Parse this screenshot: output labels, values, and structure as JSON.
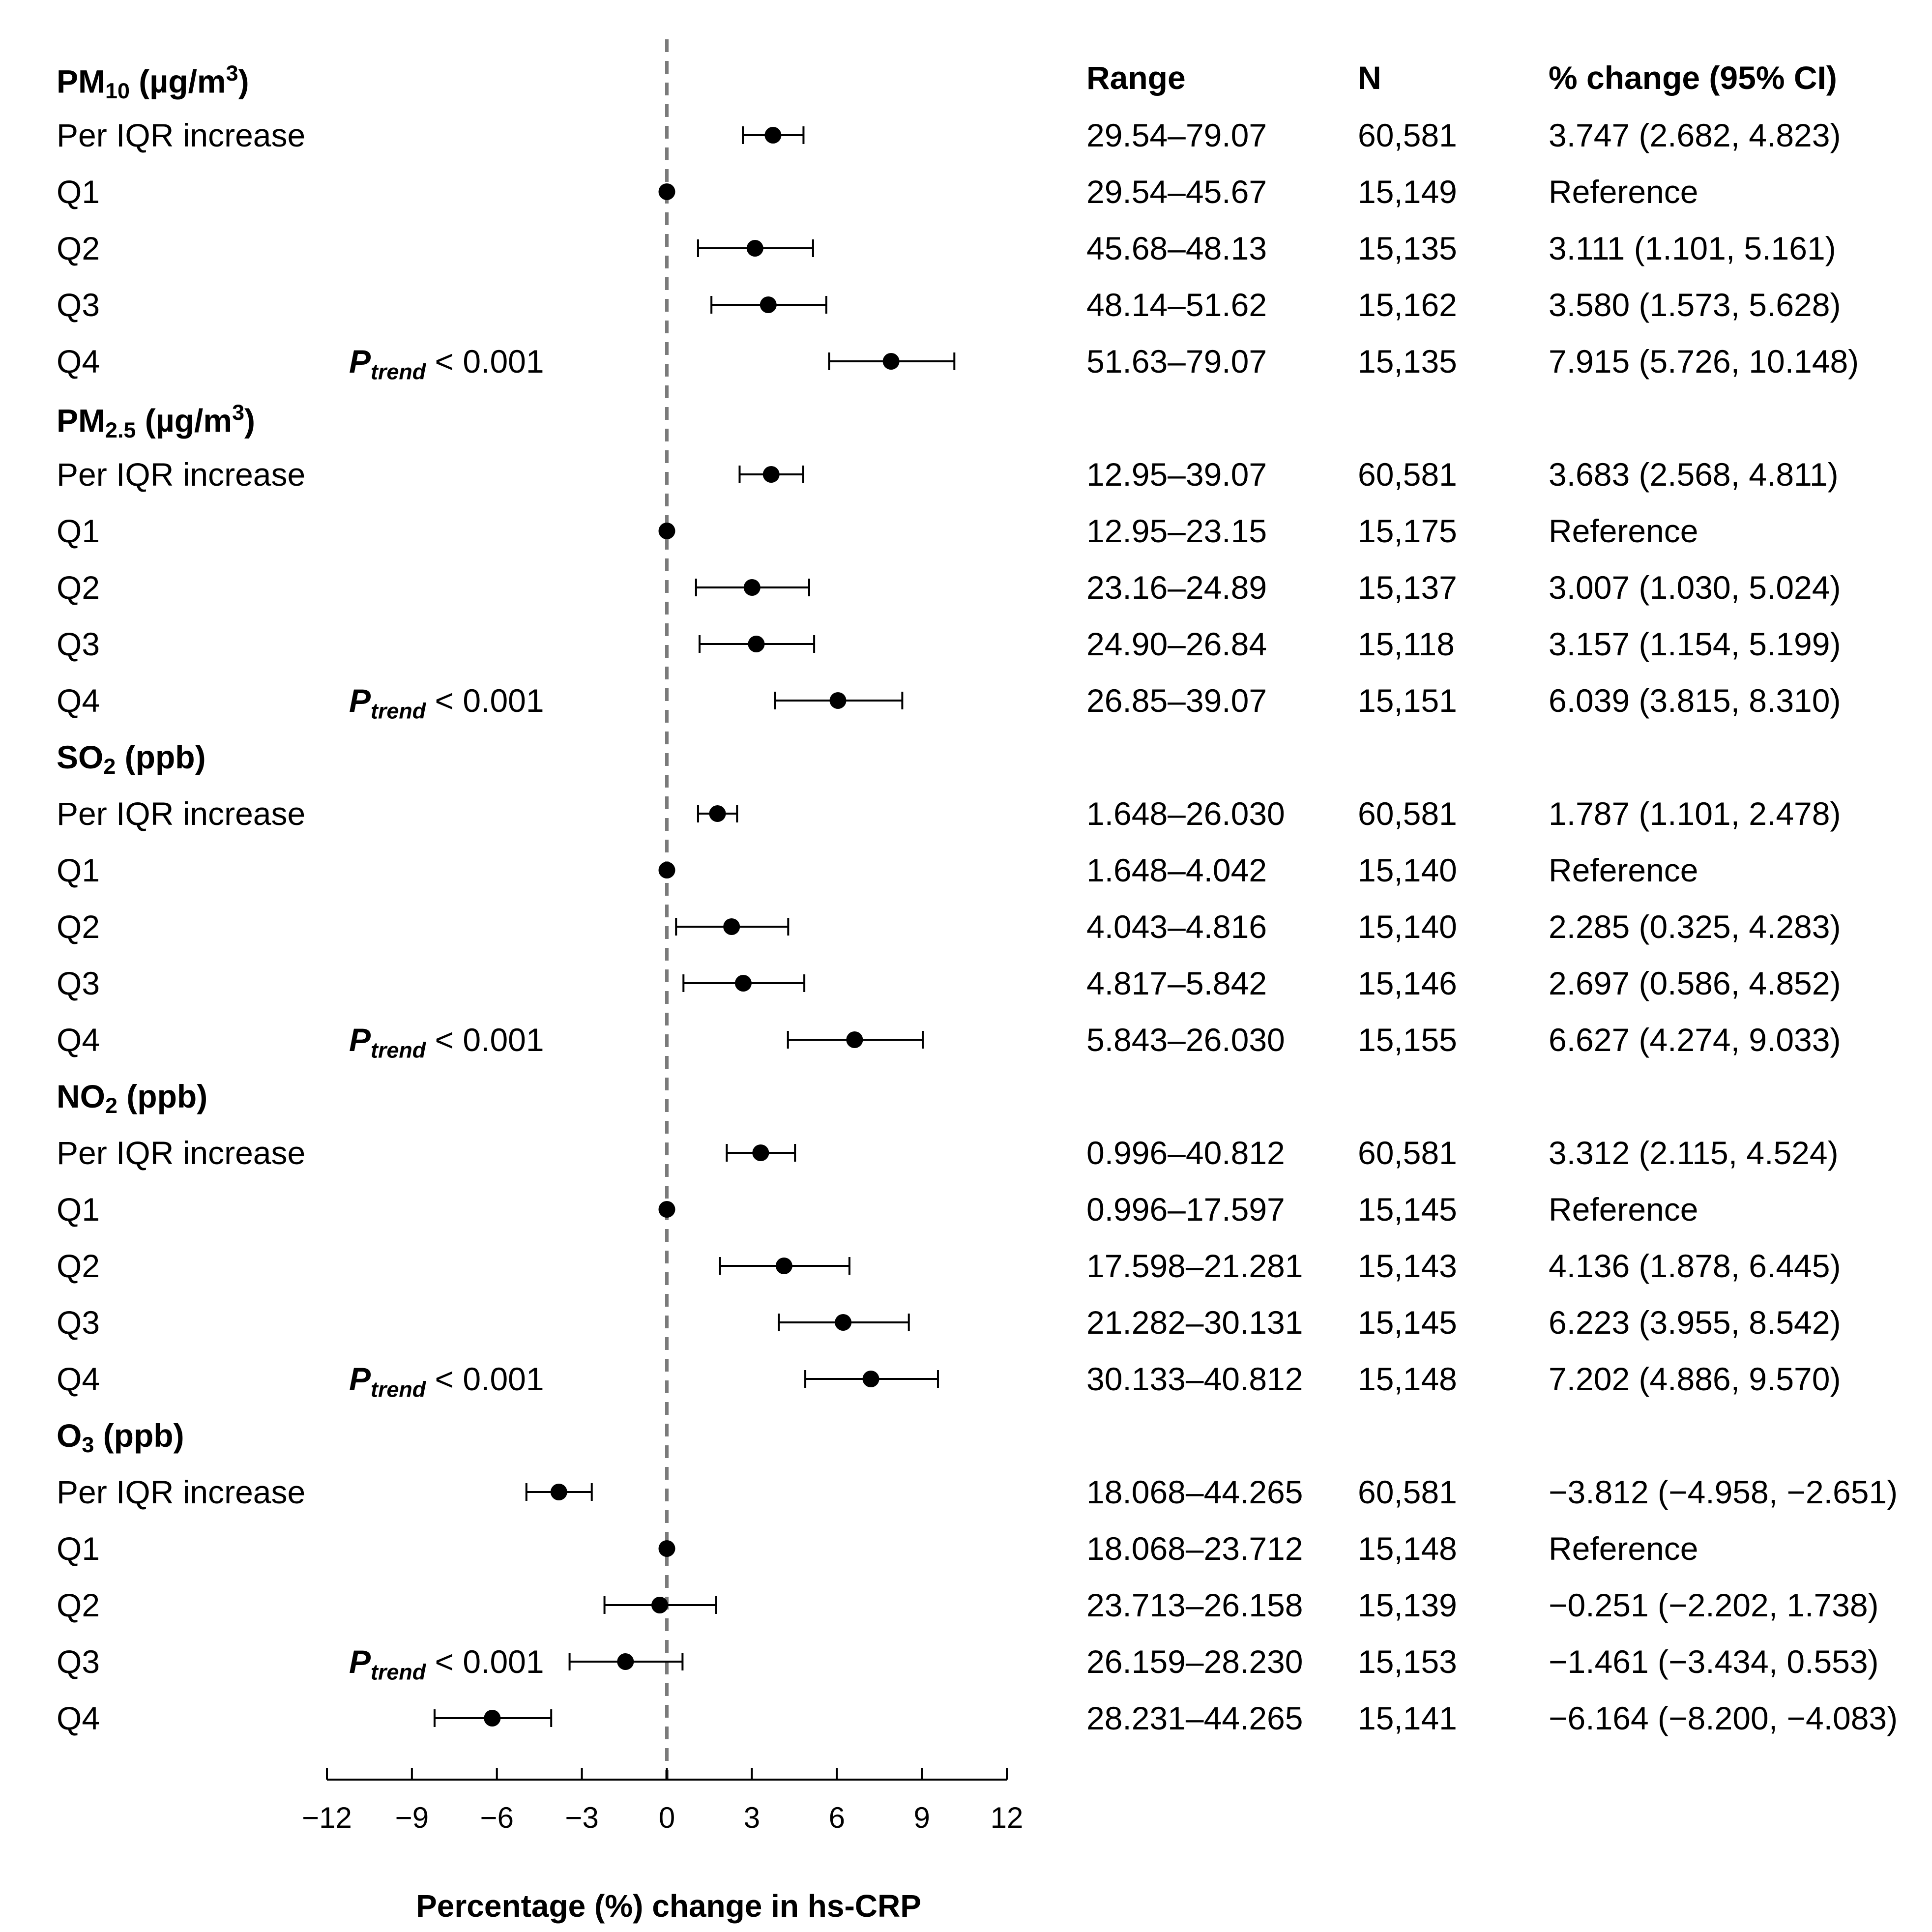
{
  "columns": {
    "range": "Range",
    "n": "N",
    "change": "% change  (95% CI)"
  },
  "row_labels": {
    "per_iqr": "Per IQR increase",
    "q1": "Q1",
    "q2": "Q2",
    "q3": "Q3",
    "q4": "Q4"
  },
  "ptrend": {
    "p": "P",
    "sub": "trend",
    "text": " < 0.001"
  },
  "chart_data": {
    "type": "forest",
    "xlabel": "Percentage (%) change in hs-CRP",
    "xlim": [
      -12,
      12
    ],
    "xticks": [
      "−12",
      "−9",
      "−6",
      "−3",
      "0",
      "3",
      "6",
      "9",
      "12"
    ],
    "xtick_values": [
      -12,
      -9,
      -6,
      -3,
      0,
      3,
      6,
      9,
      12
    ],
    "reference_line": 0,
    "groups": [
      {
        "pollutant": "PM",
        "sub": "10",
        "unit": " (µg/m",
        "unit_sup": "3",
        "unit_end": ")",
        "ptrend_row": 4,
        "rows": [
          {
            "label_key": "per_iqr",
            "range": "29.54–79.07",
            "n": "60,581",
            "ci_text": "3.747 (2.682, 4.823)",
            "est": 3.747,
            "lo": 2.682,
            "hi": 4.823
          },
          {
            "label_key": "q1",
            "range": "29.54–45.67",
            "n": "15,149",
            "ci_text": "Reference",
            "est": 0,
            "lo": null,
            "hi": null
          },
          {
            "label_key": "q2",
            "range": "45.68–48.13",
            "n": "15,135",
            "ci_text": "3.111 (1.101, 5.161)",
            "est": 3.111,
            "lo": 1.101,
            "hi": 5.161
          },
          {
            "label_key": "q3",
            "range": "48.14–51.62",
            "n": "15,162",
            "ci_text": "3.580 (1.573, 5.628)",
            "est": 3.58,
            "lo": 1.573,
            "hi": 5.628
          },
          {
            "label_key": "q4",
            "range": "51.63–79.07",
            "n": "15,135",
            "ci_text": "7.915 (5.726, 10.148)",
            "est": 7.915,
            "lo": 5.726,
            "hi": 10.148
          }
        ]
      },
      {
        "pollutant": "PM",
        "sub": "2.5",
        "unit": " (µg/m",
        "unit_sup": "3",
        "unit_end": ")",
        "ptrend_row": 4,
        "rows": [
          {
            "label_key": "per_iqr",
            "range": "12.95–39.07",
            "n": "60,581",
            "ci_text": "3.683 (2.568, 4.811)",
            "est": 3.683,
            "lo": 2.568,
            "hi": 4.811
          },
          {
            "label_key": "q1",
            "range": "12.95–23.15",
            "n": "15,175",
            "ci_text": "Reference",
            "est": 0,
            "lo": null,
            "hi": null
          },
          {
            "label_key": "q2",
            "range": "23.16–24.89",
            "n": "15,137",
            "ci_text": "3.007 (1.030, 5.024)",
            "est": 3.007,
            "lo": 1.03,
            "hi": 5.024
          },
          {
            "label_key": "q3",
            "range": "24.90–26.84",
            "n": "15,118",
            "ci_text": "3.157 (1.154, 5.199)",
            "est": 3.157,
            "lo": 1.154,
            "hi": 5.199
          },
          {
            "label_key": "q4",
            "range": "26.85–39.07",
            "n": "15,151",
            "ci_text": "6.039 (3.815, 8.310)",
            "est": 6.039,
            "lo": 3.815,
            "hi": 8.31
          }
        ]
      },
      {
        "pollutant": "SO",
        "sub": "2",
        "unit": " (ppb)",
        "unit_sup": "",
        "unit_end": "",
        "ptrend_row": 4,
        "rows": [
          {
            "label_key": "per_iqr",
            "range": "1.648–26.030",
            "n": "60,581",
            "ci_text": "1.787 (1.101, 2.478)",
            "est": 1.787,
            "lo": 1.101,
            "hi": 2.478
          },
          {
            "label_key": "q1",
            "range": "1.648–4.042",
            "n": "15,140",
            "ci_text": "Reference",
            "est": 0,
            "lo": null,
            "hi": null
          },
          {
            "label_key": "q2",
            "range": "4.043–4.816",
            "n": "15,140",
            "ci_text": "2.285 (0.325, 4.283)",
            "est": 2.285,
            "lo": 0.325,
            "hi": 4.283
          },
          {
            "label_key": "q3",
            "range": "4.817–5.842",
            "n": "15,146",
            "ci_text": "2.697 (0.586, 4.852)",
            "est": 2.697,
            "lo": 0.586,
            "hi": 4.852
          },
          {
            "label_key": "q4",
            "range": "5.843–26.030",
            "n": "15,155",
            "ci_text": "6.627 (4.274, 9.033)",
            "est": 6.627,
            "lo": 4.274,
            "hi": 9.033
          }
        ]
      },
      {
        "pollutant": "NO",
        "sub": "2",
        "unit": " (ppb)",
        "unit_sup": "",
        "unit_end": "",
        "ptrend_row": 4,
        "rows": [
          {
            "label_key": "per_iqr",
            "range": "0.996–40.812",
            "n": "60,581",
            "ci_text": "3.312 (2.115, 4.524)",
            "est": 3.312,
            "lo": 2.115,
            "hi": 4.524
          },
          {
            "label_key": "q1",
            "range": "0.996–17.597",
            "n": "15,145",
            "ci_text": "Reference",
            "est": 0,
            "lo": null,
            "hi": null
          },
          {
            "label_key": "q2",
            "range": "17.598–21.281",
            "n": "15,143",
            "ci_text": "4.136 (1.878, 6.445)",
            "est": 4.136,
            "lo": 1.878,
            "hi": 6.445
          },
          {
            "label_key": "q3",
            "range": "21.282–30.131",
            "n": "15,145",
            "ci_text": "6.223 (3.955, 8.542)",
            "est": 6.223,
            "lo": 3.955,
            "hi": 8.542
          },
          {
            "label_key": "q4",
            "range": "30.133–40.812",
            "n": "15,148",
            "ci_text": "7.202 (4.886, 9.570)",
            "est": 7.202,
            "lo": 4.886,
            "hi": 9.57
          }
        ]
      },
      {
        "pollutant": "O",
        "sub": "3",
        "unit": " (ppb)",
        "unit_sup": "",
        "unit_end": "",
        "ptrend_row": 3,
        "rows": [
          {
            "label_key": "per_iqr",
            "range": "18.068–44.265",
            "n": "60,581",
            "ci_text": "−3.812 (−4.958, −2.651)",
            "est": -3.812,
            "lo": -4.958,
            "hi": -2.651
          },
          {
            "label_key": "q1",
            "range": "18.068–23.712",
            "n": "15,148",
            "ci_text": "Reference",
            "est": 0,
            "lo": null,
            "hi": null
          },
          {
            "label_key": "q2",
            "range": "23.713–26.158",
            "n": "15,139",
            "ci_text": "−0.251 (−2.202, 1.738)",
            "est": -0.251,
            "lo": -2.202,
            "hi": 1.738
          },
          {
            "label_key": "q3",
            "range": "26.159–28.230",
            "n": "15,153",
            "ci_text": "−1.461 (−3.434, 0.553)",
            "est": -1.461,
            "lo": -3.434,
            "hi": 0.553
          },
          {
            "label_key": "q4",
            "range": "28.231–44.265",
            "n": "15,141",
            "ci_text": "−6.164 (−8.200, −4.083)",
            "est": -6.164,
            "lo": -8.2,
            "hi": -4.083
          }
        ]
      }
    ]
  }
}
